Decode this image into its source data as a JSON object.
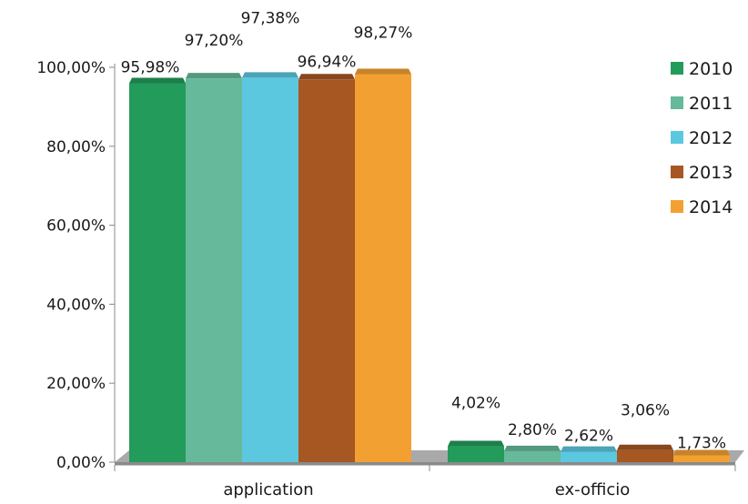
{
  "chart_data": {
    "type": "bar",
    "categories": [
      "application",
      "ex-officio"
    ],
    "series": [
      {
        "name": "2010",
        "color": "#239b5a",
        "values": [
          95.98,
          4.02
        ],
        "labels": [
          "95,98%",
          "4,02%"
        ]
      },
      {
        "name": "2011",
        "color": "#66b99b",
        "values": [
          97.2,
          2.8
        ],
        "labels": [
          "97,20%",
          "2,80%"
        ]
      },
      {
        "name": "2012",
        "color": "#5cc8e0",
        "values": [
          97.38,
          2.62
        ],
        "labels": [
          "97,38%",
          "2,62%"
        ]
      },
      {
        "name": "2013",
        "color": "#a65722",
        "values": [
          96.94,
          3.06
        ],
        "labels": [
          "96,94%",
          "3,06%"
        ]
      },
      {
        "name": "2014",
        "color": "#f3a033",
        "values": [
          98.27,
          1.73
        ],
        "labels": [
          "98,27%",
          "1,73%"
        ]
      }
    ],
    "yticks": [
      "0,00%",
      "20,00%",
      "40,00%",
      "60,00%",
      "80,00%",
      "100,00%"
    ],
    "ylim": [
      0,
      100
    ],
    "legend": "top-right",
    "grid": false
  }
}
